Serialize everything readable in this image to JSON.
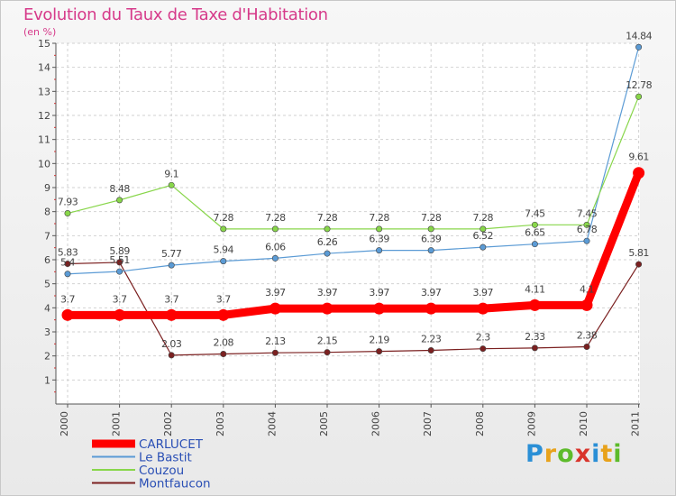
{
  "title": "Evolution du Taux de Taxe d'Habitation",
  "subtitle": "(en %)",
  "logo": {
    "text": "Proxiti",
    "colors": [
      "#2a8fd6",
      "#e8a21b",
      "#5dbb2a",
      "#d9342b",
      "#2a8fd6",
      "#e8a21b",
      "#5dbb2a"
    ]
  },
  "chart_data": {
    "type": "line",
    "x": [
      "2000",
      "2001",
      "2002",
      "2003",
      "2004",
      "2005",
      "2006",
      "2007",
      "2008",
      "2009",
      "2010",
      "2011"
    ],
    "ylim": [
      0,
      15
    ],
    "yticks": [
      1,
      2,
      3,
      4,
      5,
      6,
      7,
      8,
      9,
      10,
      11,
      12,
      13,
      14,
      15
    ],
    "legend_position": "bottom-left",
    "series": [
      {
        "name": "CARLUCET",
        "color": "#ff0000",
        "values": [
          3.7,
          3.7,
          3.7,
          3.7,
          3.97,
          3.97,
          3.97,
          3.97,
          3.97,
          4.11,
          4.11,
          9.61
        ],
        "labels": [
          "3.7",
          "3.7",
          "3.7",
          "3.7",
          "3.97",
          "3.97",
          "3.97",
          "3.97",
          "3.97",
          "4.11",
          "4.1",
          "9.61"
        ]
      },
      {
        "name": "Le Bastit",
        "color": "#5b9bd5",
        "values": [
          5.41,
          5.51,
          5.77,
          5.94,
          6.06,
          6.26,
          6.39,
          6.39,
          6.52,
          6.65,
          6.78,
          14.84
        ],
        "labels": [
          "5.4",
          "5.51",
          "5.77",
          "5.94",
          "6.06",
          "6.26",
          "6.39",
          "6.39",
          "6.52",
          "6.65",
          "6.78",
          "14.84"
        ]
      },
      {
        "name": "Couzou",
        "color": "#88d64a",
        "values": [
          7.93,
          8.48,
          9.1,
          7.28,
          7.28,
          7.28,
          7.28,
          7.28,
          7.28,
          7.45,
          7.45,
          12.78
        ],
        "labels": [
          "7.93",
          "8.48",
          "9.1",
          "7.28",
          "7.28",
          "7.28",
          "7.28",
          "7.28",
          "7.28",
          "7.45",
          "7.45",
          "12.78"
        ]
      },
      {
        "name": "Montfaucon",
        "color": "#7b2020",
        "values": [
          5.83,
          5.89,
          2.03,
          2.08,
          2.13,
          2.15,
          2.19,
          2.23,
          2.3,
          2.33,
          2.38,
          5.81
        ],
        "labels": [
          "5.83",
          "5.89",
          "2.03",
          "2.08",
          "2.13",
          "2.15",
          "2.19",
          "2.23",
          "2.3",
          "2.33",
          "2.38",
          "5.81"
        ]
      }
    ]
  }
}
